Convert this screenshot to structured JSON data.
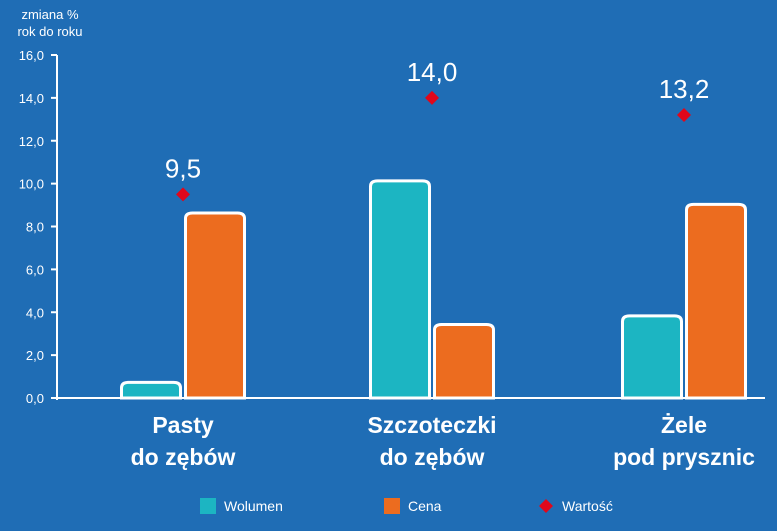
{
  "chart_data": {
    "type": "bar",
    "ylabel": [
      "zmiana %",
      "rok do roku"
    ],
    "ylim": [
      0,
      16
    ],
    "yticks": [
      "0,0",
      "2,0",
      "4,0",
      "6,0",
      "8,0",
      "10,0",
      "12,0",
      "14,0",
      "16,0"
    ],
    "categories": [
      [
        "Pasty",
        "do zębów"
      ],
      [
        "Szczoteczki",
        "do zębów"
      ],
      [
        "Żele",
        "pod prysznic"
      ]
    ],
    "series": [
      {
        "name": "Wolumen",
        "kind": "bar",
        "values": [
          0.8,
          10.2,
          3.9
        ],
        "color": "#1cb5c2"
      },
      {
        "name": "Cena",
        "kind": "bar",
        "values": [
          8.7,
          3.5,
          9.1
        ],
        "color": "#ec6c1f"
      },
      {
        "name": "Wartość",
        "kind": "marker",
        "values": [
          9.5,
          14.0,
          13.2
        ],
        "labels": [
          "9,5",
          "14,0",
          "13,2"
        ],
        "color": "#e0071b"
      }
    ],
    "legend_position": "bottom",
    "grid": false
  }
}
